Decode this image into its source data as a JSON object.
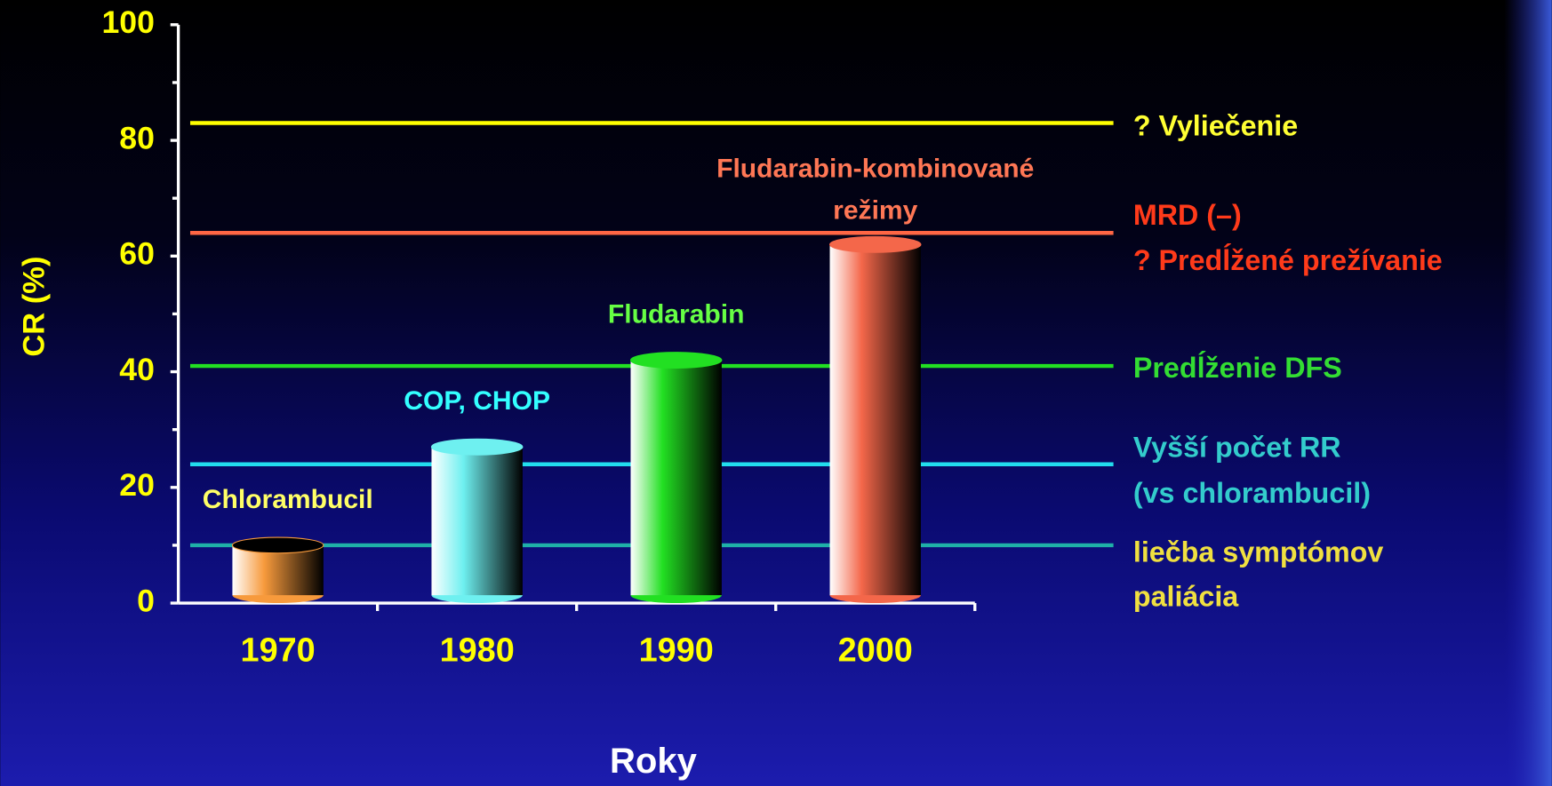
{
  "chart_data": {
    "type": "cylinder-bar",
    "y_label": "CR  (%)",
    "x_label": "Roky",
    "categories": [
      "1970",
      "1980",
      "1990",
      "2000"
    ],
    "values": [
      10,
      27,
      42,
      62
    ],
    "colors": [
      "#f79a3c",
      "#6ef0f0",
      "#22e022",
      "#f4674a"
    ],
    "bar_labels": [
      [
        "Chlorambucil"
      ],
      [
        "COP, CHOP"
      ],
      [
        "Fludarabin"
      ],
      [
        "Fludarabin-kombinované",
        "režimy"
      ]
    ],
    "bar_label_colors": [
      "#ffff66",
      "#33ffff",
      "#66ff44",
      "#ff7755"
    ],
    "ylim": [
      0,
      100
    ],
    "yticks": [
      0,
      20,
      40,
      60,
      80,
      100
    ],
    "yminorticks": [
      10,
      30,
      50,
      70,
      90
    ],
    "reference_lines": [
      {
        "value": 83,
        "color": "#ffff00",
        "label_color": "#ffff33",
        "label": [
          "? Vyliečenie"
        ]
      },
      {
        "value": 64,
        "color": "#ff6644",
        "label_color": "#ff3a1a",
        "label": [
          "MRD (–)",
          "? Predĺžené prežívanie"
        ]
      },
      {
        "value": 41,
        "color": "#22e022",
        "label_color": "#33dd33",
        "label": [
          "Predĺženie DFS"
        ]
      },
      {
        "value": 24,
        "color": "#22ddee",
        "label_color": "#33cccc",
        "label": [
          "Vyšší počet RR",
          "(vs chlorambucil)"
        ]
      },
      {
        "value": 10,
        "color": "#1fb0a8",
        "label_color": "#f0e040",
        "label": [
          " liečba symptómov",
          "paliácia"
        ]
      }
    ]
  }
}
